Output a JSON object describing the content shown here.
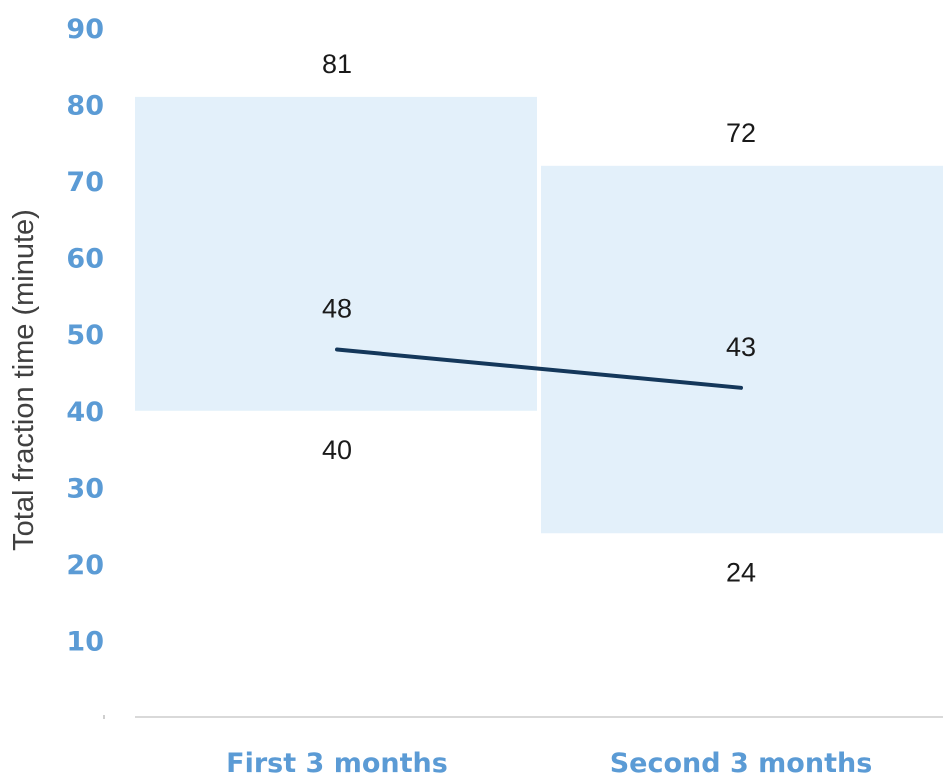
{
  "chart_data": {
    "type": "line",
    "categories": [
      "First 3 months",
      "Second 3 months"
    ],
    "series": [
      {
        "values": [
          48,
          43
        ]
      }
    ],
    "ranges": [
      {
        "low": 40,
        "high": 81
      },
      {
        "low": 24,
        "high": 72
      }
    ],
    "data_labels": {
      "line": [
        "48",
        "43"
      ],
      "high": [
        "81",
        "72"
      ],
      "low": [
        "40",
        "24"
      ]
    },
    "ylabel": "Total fraction time (minute)",
    "xlabel": "",
    "ylim": [
      0,
      90
    ],
    "yticks": [
      10,
      20,
      30,
      40,
      50,
      60,
      70,
      80,
      90
    ],
    "grid": false,
    "colors": {
      "range_fill": "#e3f0fa",
      "line": "#14375a",
      "tick_label": "#5b9bd5",
      "axis": "#d9d9d9"
    }
  }
}
